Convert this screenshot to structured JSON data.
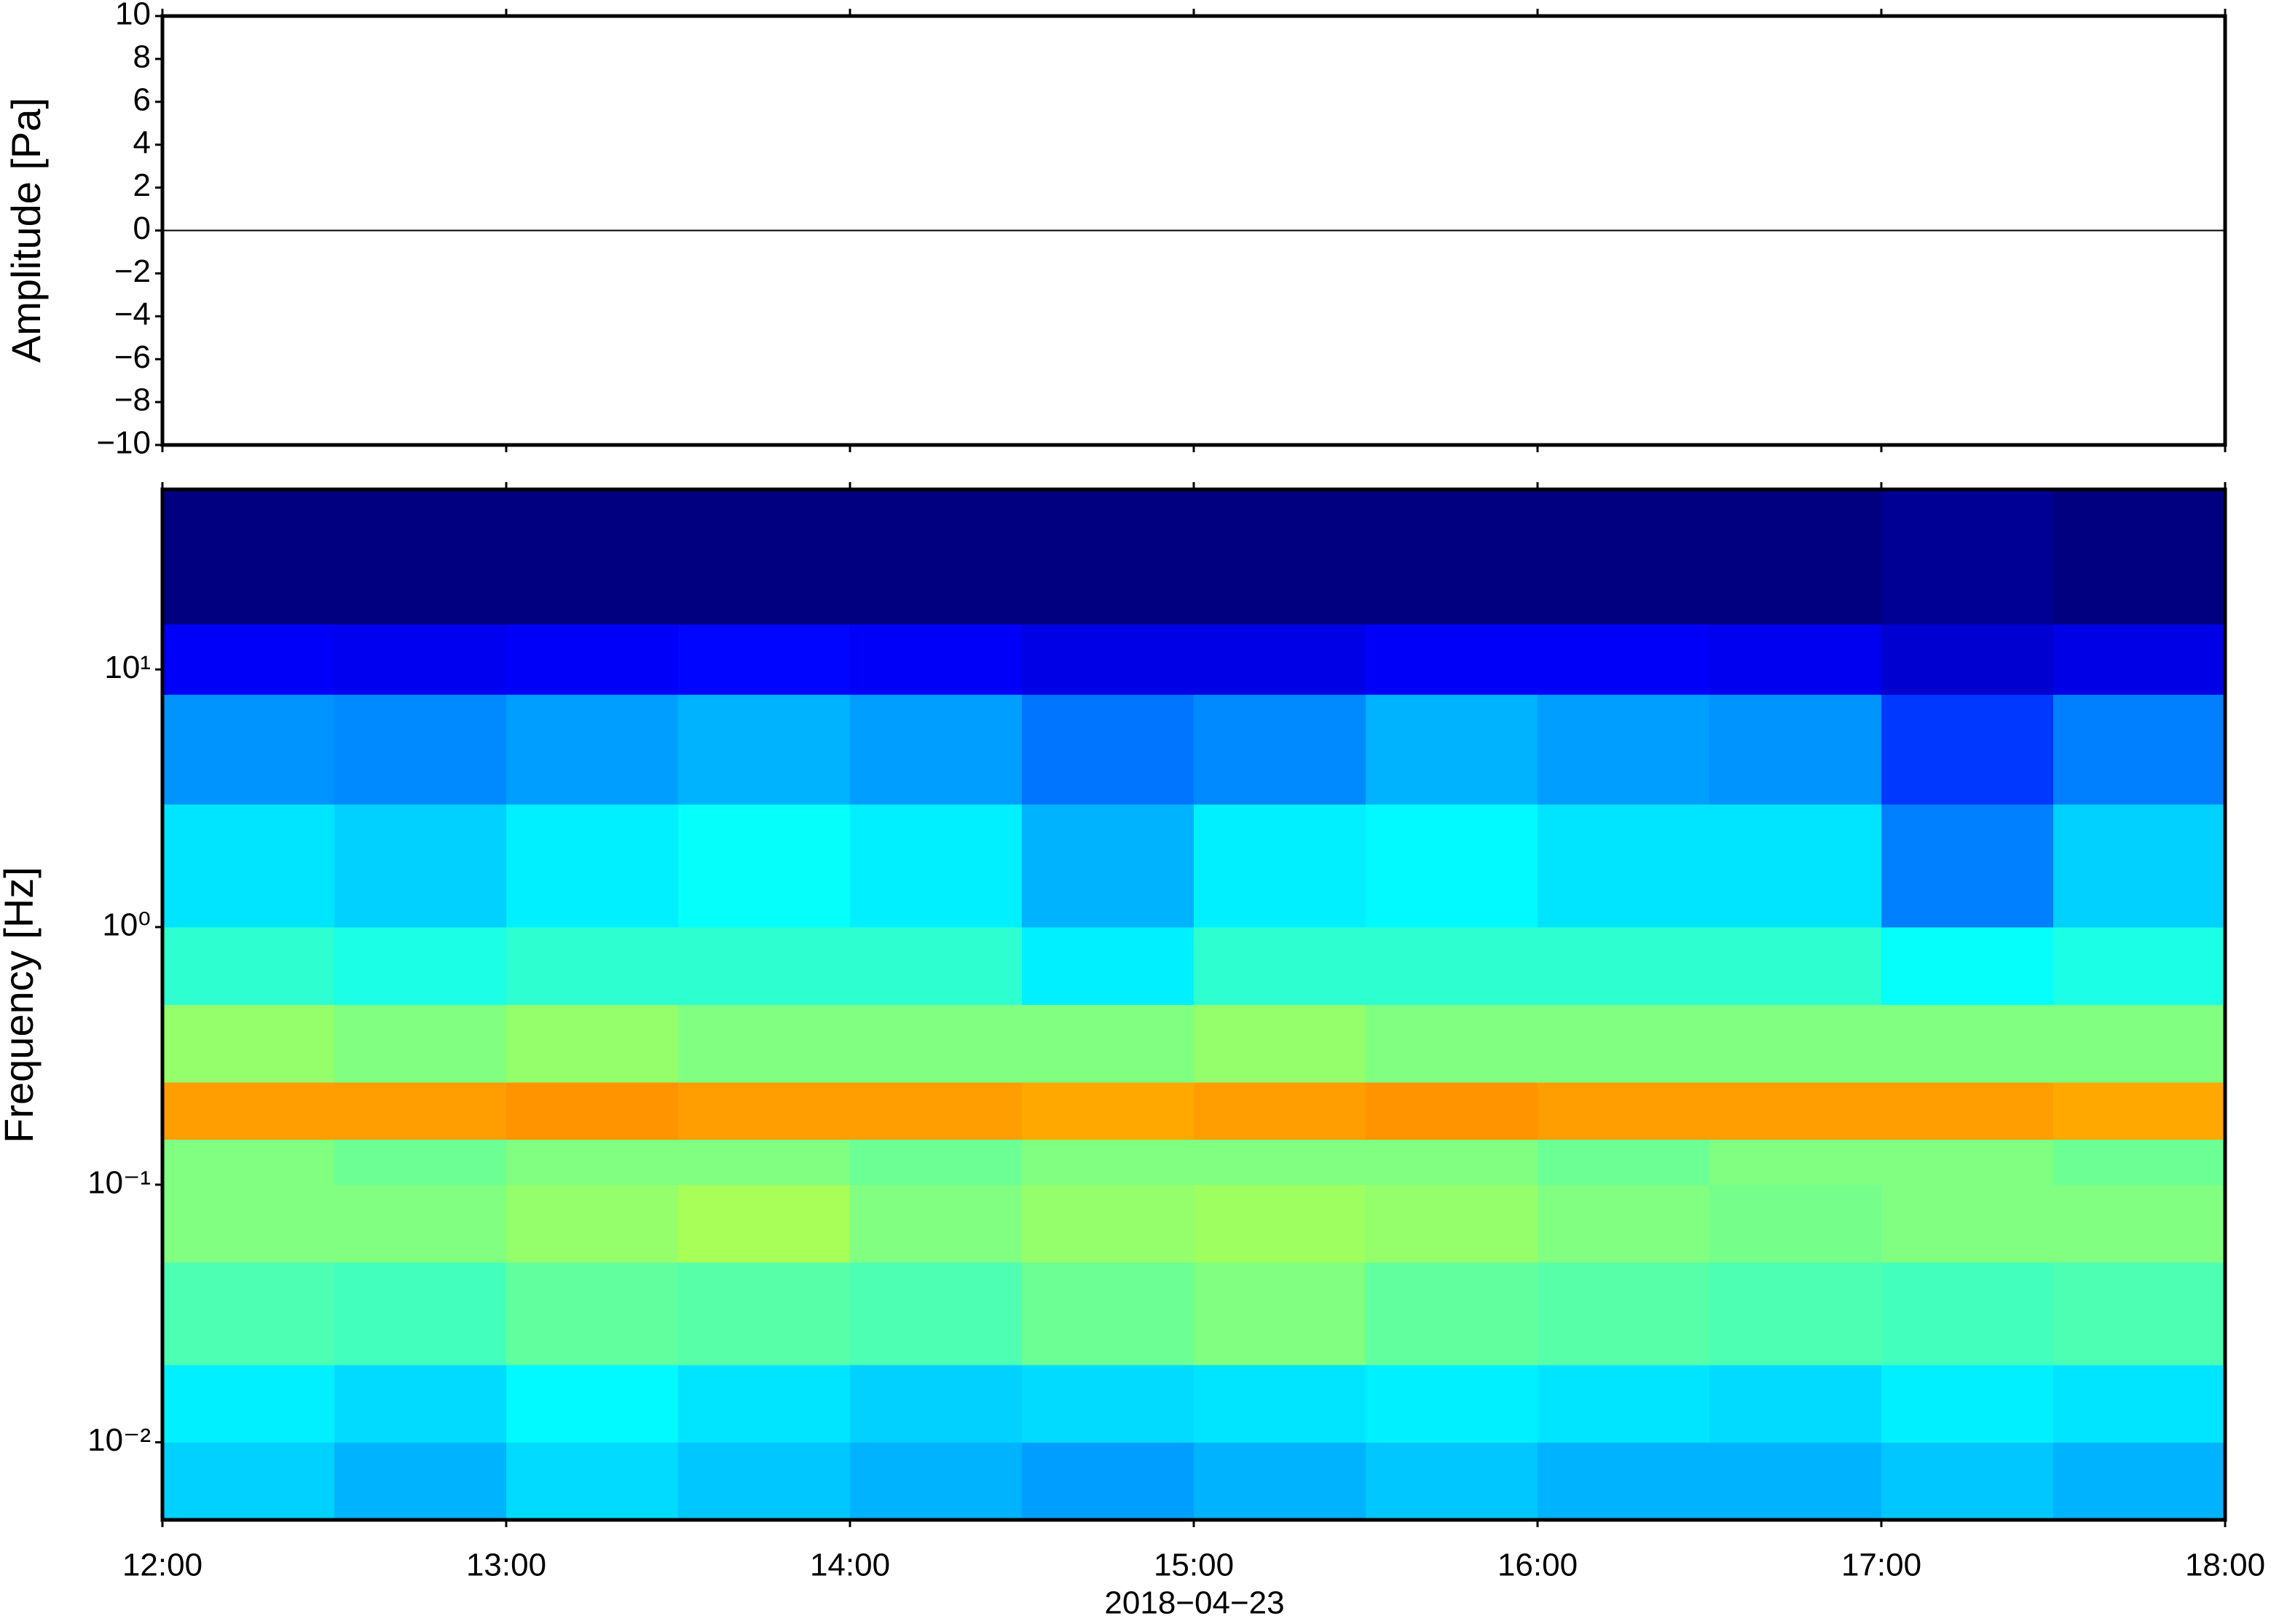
{
  "chart_data": [
    {
      "type": "line",
      "ylabel": "Amplitude [Pa]",
      "color": "#000000",
      "values": [
        0,
        0,
        0,
        0,
        0,
        0,
        0
      ],
      "ylim": [
        -10,
        10
      ],
      "yticks": [
        {
          "value": -10,
          "label": "−10"
        },
        {
          "value": -8,
          "label": "−8"
        },
        {
          "value": -6,
          "label": "−6"
        },
        {
          "value": -4,
          "label": "−4"
        },
        {
          "value": -2,
          "label": "−2"
        },
        0,
        2,
        4,
        6,
        8,
        10
      ]
    },
    {
      "type": "heatmap",
      "ylabel": "Frequency [Hz]",
      "xlabel": "2018−04−23",
      "colormap": "jet",
      "ylog": true,
      "xticks": [
        "12:00",
        "13:00",
        "14:00",
        "15:00",
        "16:00",
        "17:00",
        "18:00"
      ],
      "ylim": [
        0.005,
        50
      ],
      "yticks": [
        {
          "value": 0.01,
          "label": "10⁻²"
        },
        {
          "value": 0.1,
          "label": "10⁻¹"
        },
        {
          "value": 1,
          "label": "10⁰"
        },
        {
          "value": 10,
          "label": "10¹"
        }
      ],
      "y_edges": [
        0.005,
        0.01,
        0.02,
        0.05,
        0.1,
        0.15,
        0.25,
        0.5,
        1,
        3,
        8,
        15,
        50
      ],
      "values": [
        [
          0.33,
          0.3,
          0.34,
          0.32,
          0.3,
          0.28,
          0.3,
          0.32,
          0.3,
          0.3,
          0.32,
          0.3
        ],
        [
          0.36,
          0.34,
          0.37,
          0.35,
          0.33,
          0.34,
          0.35,
          0.36,
          0.35,
          0.34,
          0.36,
          0.35
        ],
        [
          0.45,
          0.44,
          0.47,
          0.46,
          0.45,
          0.48,
          0.5,
          0.47,
          0.46,
          0.45,
          0.44,
          0.45
        ],
        [
          0.5,
          0.5,
          0.52,
          0.54,
          0.5,
          0.52,
          0.53,
          0.52,
          0.5,
          0.49,
          0.5,
          0.5
        ],
        [
          0.5,
          0.48,
          0.5,
          0.5,
          0.48,
          0.5,
          0.5,
          0.5,
          0.48,
          0.5,
          0.5,
          0.48
        ],
        [
          0.72,
          0.72,
          0.73,
          0.72,
          0.72,
          0.71,
          0.72,
          0.73,
          0.72,
          0.72,
          0.72,
          0.71
        ],
        [
          0.52,
          0.5,
          0.52,
          0.5,
          0.5,
          0.5,
          0.52,
          0.5,
          0.5,
          0.5,
          0.5,
          0.5
        ],
        [
          0.42,
          0.4,
          0.42,
          0.42,
          0.42,
          0.36,
          0.42,
          0.42,
          0.42,
          0.42,
          0.38,
          0.4
        ],
        [
          0.35,
          0.33,
          0.36,
          0.38,
          0.36,
          0.3,
          0.36,
          0.37,
          0.35,
          0.35,
          0.25,
          0.33
        ],
        [
          0.27,
          0.26,
          0.28,
          0.3,
          0.28,
          0.24,
          0.26,
          0.3,
          0.28,
          0.27,
          0.18,
          0.25
        ],
        [
          0.12,
          0.11,
          0.12,
          0.13,
          0.12,
          0.1,
          0.1,
          0.12,
          0.12,
          0.11,
          0.08,
          0.1
        ],
        [
          0.0,
          0.0,
          0.0,
          0.0,
          0.0,
          0.0,
          0.0,
          0.0,
          0.0,
          0.0,
          0.02,
          0.0
        ]
      ]
    }
  ]
}
